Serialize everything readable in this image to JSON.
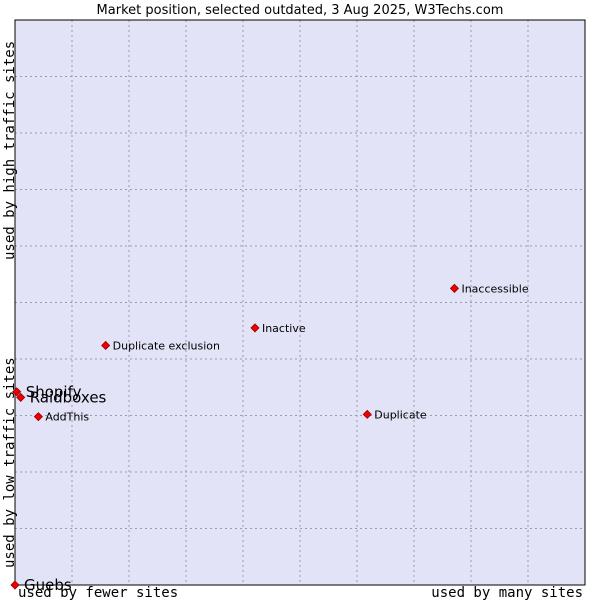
{
  "chart_data": {
    "type": "scatter",
    "title": "Market position, selected outdated, 3 Aug 2025, W3Techs.com",
    "xlabel_left": "used by fewer sites",
    "xlabel_right": "used by many sites",
    "ylabel_low": "used by low traffic sites",
    "ylabel_high": "used by high traffic sites",
    "xlim": [
      0,
      100
    ],
    "ylim": [
      0,
      100
    ],
    "grid": true,
    "colors": {
      "background": "#e3e3f7",
      "grid": "#9a9ab4",
      "marker": "#ee0000",
      "marker_edge": "#990000"
    },
    "points": [
      {
        "name": "Inaccessible",
        "x": 77.1,
        "y": 52.5,
        "size": "small"
      },
      {
        "name": "Inactive",
        "x": 42.1,
        "y": 45.5,
        "size": "small"
      },
      {
        "name": "Duplicate exclusion",
        "x": 15.9,
        "y": 42.4,
        "size": "small"
      },
      {
        "name": "Shopify",
        "x": 0.3,
        "y": 34.2,
        "size": "large"
      },
      {
        "name": "Raidboxes",
        "x": 1.0,
        "y": 33.2,
        "size": "large"
      },
      {
        "name": "Duplicate",
        "x": 61.8,
        "y": 30.2,
        "size": "small"
      },
      {
        "name": "AddThis",
        "x": 4.1,
        "y": 29.8,
        "size": "small"
      },
      {
        "name": "Guebs",
        "x": 0.0,
        "y": 0.0,
        "size": "large"
      }
    ]
  }
}
